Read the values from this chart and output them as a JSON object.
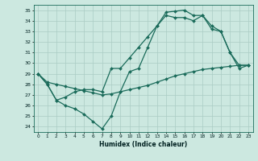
{
  "xlabel": "Humidex (Indice chaleur)",
  "bg_color": "#cce8e0",
  "grid_color": "#aaccc4",
  "line_color": "#1a6b5a",
  "xlim": [
    -0.5,
    23.5
  ],
  "ylim": [
    23.5,
    35.5
  ],
  "yticks": [
    24,
    25,
    26,
    27,
    28,
    29,
    30,
    31,
    32,
    33,
    34,
    35
  ],
  "xticks": [
    0,
    1,
    2,
    3,
    4,
    5,
    6,
    7,
    8,
    9,
    10,
    11,
    12,
    13,
    14,
    15,
    16,
    17,
    18,
    19,
    20,
    21,
    22,
    23
  ],
  "line1_x": [
    0,
    1,
    2,
    3,
    4,
    5,
    6,
    7,
    8,
    9,
    10,
    11,
    12,
    13,
    14,
    15,
    16,
    17,
    18,
    19,
    20,
    21,
    22,
    23
  ],
  "line1_y": [
    29.0,
    28.0,
    26.5,
    26.0,
    25.7,
    25.2,
    24.5,
    23.8,
    25.0,
    27.3,
    29.2,
    29.5,
    31.5,
    33.5,
    34.8,
    34.9,
    35.0,
    34.5,
    34.5,
    33.2,
    33.0,
    31.0,
    29.8,
    29.8
  ],
  "line2_x": [
    0,
    1,
    2,
    3,
    4,
    5,
    6,
    7,
    8,
    9,
    10,
    11,
    12,
    13,
    14,
    15,
    16,
    17,
    18,
    19,
    20,
    21,
    22,
    23
  ],
  "line2_y": [
    29.0,
    28.2,
    28.0,
    27.8,
    27.6,
    27.4,
    27.2,
    27.0,
    27.1,
    27.3,
    27.5,
    27.7,
    27.9,
    28.2,
    28.5,
    28.8,
    29.0,
    29.2,
    29.4,
    29.5,
    29.6,
    29.7,
    29.8,
    29.8
  ],
  "line3_x": [
    0,
    1,
    2,
    3,
    4,
    5,
    6,
    7,
    8,
    9,
    10,
    11,
    12,
    13,
    14,
    15,
    16,
    17,
    18,
    19,
    20,
    21,
    22,
    23
  ],
  "line3_y": [
    29.0,
    28.0,
    26.5,
    26.8,
    27.3,
    27.5,
    27.5,
    27.3,
    29.5,
    29.5,
    30.5,
    31.5,
    32.5,
    33.5,
    34.5,
    34.3,
    34.3,
    34.0,
    34.5,
    33.5,
    33.0,
    31.0,
    29.5,
    29.8
  ]
}
